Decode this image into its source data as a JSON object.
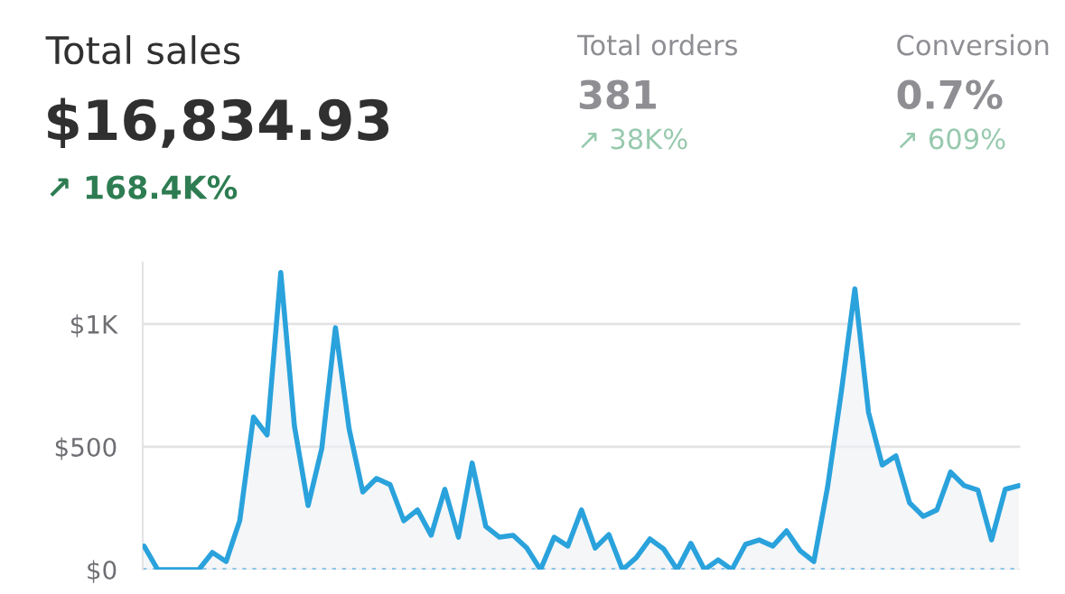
{
  "chart_data": {
    "type": "area",
    "title": "Total sales",
    "subtitle": "$16,834.93",
    "annotations": [
      "↗ 168.4K%",
      "Total orders",
      "381",
      "↗ 38K%",
      "Conversion",
      "0.7%",
      "↗ 609%"
    ],
    "categories": [
      null,
      null,
      null,
      null,
      null,
      null,
      null,
      null,
      null,
      null,
      null,
      null,
      null,
      null,
      null,
      null,
      null,
      null,
      null,
      null,
      null,
      null,
      null,
      null,
      null,
      null,
      null,
      null,
      null,
      null,
      null,
      null,
      null,
      null,
      null,
      null,
      null,
      null,
      null,
      null,
      null,
      null,
      null,
      null,
      null,
      null,
      null,
      null,
      null,
      null,
      null,
      null,
      null,
      null,
      null,
      null,
      null,
      null,
      null,
      null,
      null,
      null,
      null,
      null,
      null
    ],
    "series": [
      {
        "color": "#2aa2dc",
        "values": [
          96,
          0,
          0,
          0,
          0,
          70,
          33,
          200,
          621,
          548,
          1210,
          584,
          261,
          493,
          985,
          573,
          316,
          371,
          346,
          199,
          243,
          140,
          327,
          132,
          434,
          176,
          132,
          140,
          88,
          0,
          132,
          96,
          243,
          88,
          143,
          0,
          48,
          125,
          85,
          0,
          107,
          0,
          40,
          0,
          103,
          121,
          96,
          158,
          77,
          33,
          335,
          720,
          1143,
          640,
          426,
          463,
          272,
          217,
          243,
          397,
          342,
          324,
          121,
          327,
          342
        ]
      }
    ],
    "ylim": [
      0,
      1250
    ],
    "yticks": [
      {
        "value": 0,
        "label": "$0"
      },
      {
        "value": 500,
        "label": "$500"
      },
      {
        "value": 1000,
        "label": "$1K"
      }
    ],
    "ref_lines": [
      {
        "axis": "y",
        "value": 0,
        "color": "#8cc4e4",
        "line_style": "dotted"
      }
    ],
    "grid": "y",
    "legend": false,
    "tick_labels": "y"
  }
}
